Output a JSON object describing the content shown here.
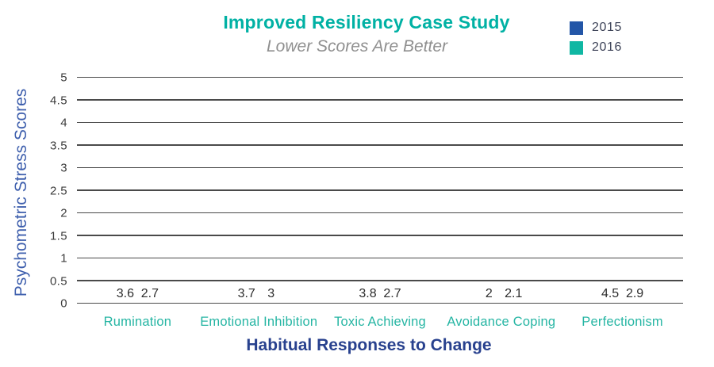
{
  "title": "Improved Resiliency Case Study",
  "subtitle": "Lower Scores Are Better",
  "legend": {
    "items": [
      {
        "label": "2015",
        "color": "#2356a7"
      },
      {
        "label": "2016",
        "color": "#10b7a3"
      }
    ]
  },
  "chart_data": {
    "type": "bar",
    "title": "Improved Resiliency Case Study",
    "subtitle": "Lower Scores Are Better",
    "categories": [
      "Rumination",
      "Emotional Inhibition",
      "Toxic Achieving",
      "Avoidance Coping",
      "Perfectionism"
    ],
    "series": [
      {
        "name": "2015",
        "color": "#2356a7",
        "values": [
          3.6,
          3.7,
          3.8,
          2,
          4.5
        ]
      },
      {
        "name": "2016",
        "color": "#10b7a3",
        "values": [
          2.7,
          3,
          2.7,
          2.1,
          2.9
        ]
      }
    ],
    "xlabel": "Habitual Responses to Change",
    "ylabel": "Psychometric Stress Scores",
    "ylim": [
      0,
      5
    ],
    "ytick_step": 0.5,
    "yticks": [
      "5",
      "4.5",
      "4",
      "3.5",
      "3",
      "2.5",
      "2",
      "1.5",
      "1",
      "0.5",
      "0"
    ],
    "grid": true,
    "legend_position": "top-right",
    "colors": {
      "title": "#00b1a4",
      "subtitle": "#8f8f8f",
      "category_labels": "#25b5a3",
      "xlabel": "#28418e",
      "ylabel": "#3e5fad",
      "gridline": "#4a4a4a",
      "data_labels": "#2d2d2d"
    }
  }
}
